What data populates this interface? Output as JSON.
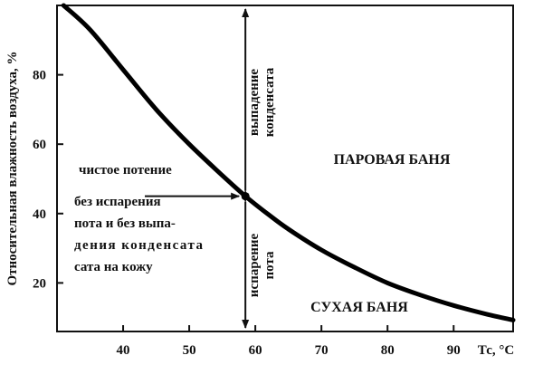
{
  "chart_data": {
    "type": "line",
    "xlabel": "Тс, °С",
    "ylabel": "Относительная влажность воздуха, %",
    "xlim": [
      30,
      99
    ],
    "ylim": [
      6,
      100
    ],
    "x_ticks": [
      40,
      50,
      60,
      70,
      80,
      90
    ],
    "y_ticks": [
      20,
      40,
      60,
      80
    ],
    "series": [
      {
        "x": [
          31,
          35,
          40,
          45,
          50,
          55,
          58.5,
          62,
          65,
          70,
          75,
          80,
          85,
          90,
          95,
          99
        ],
        "y": [
          100,
          93,
          81.5,
          70,
          60,
          51,
          45,
          39.7,
          35.5,
          29.5,
          24.5,
          20,
          16.5,
          13.5,
          11,
          9.3
        ]
      }
    ],
    "marker": {
      "x": 58.5,
      "y": 45
    },
    "regions": [
      "ПАРОВАЯ БАНЯ",
      "СУХАЯ БАНЯ"
    ],
    "annotations": {
      "condensation": [
        "выпадение",
        "конденсата"
      ],
      "evaporation": [
        "испарение",
        "пота"
      ],
      "pure_sweating": "чистое потение",
      "neutral": [
        "без испарения",
        "пота и без выпа-",
        "дения конденсата",
        "сата на кожу"
      ]
    }
  }
}
